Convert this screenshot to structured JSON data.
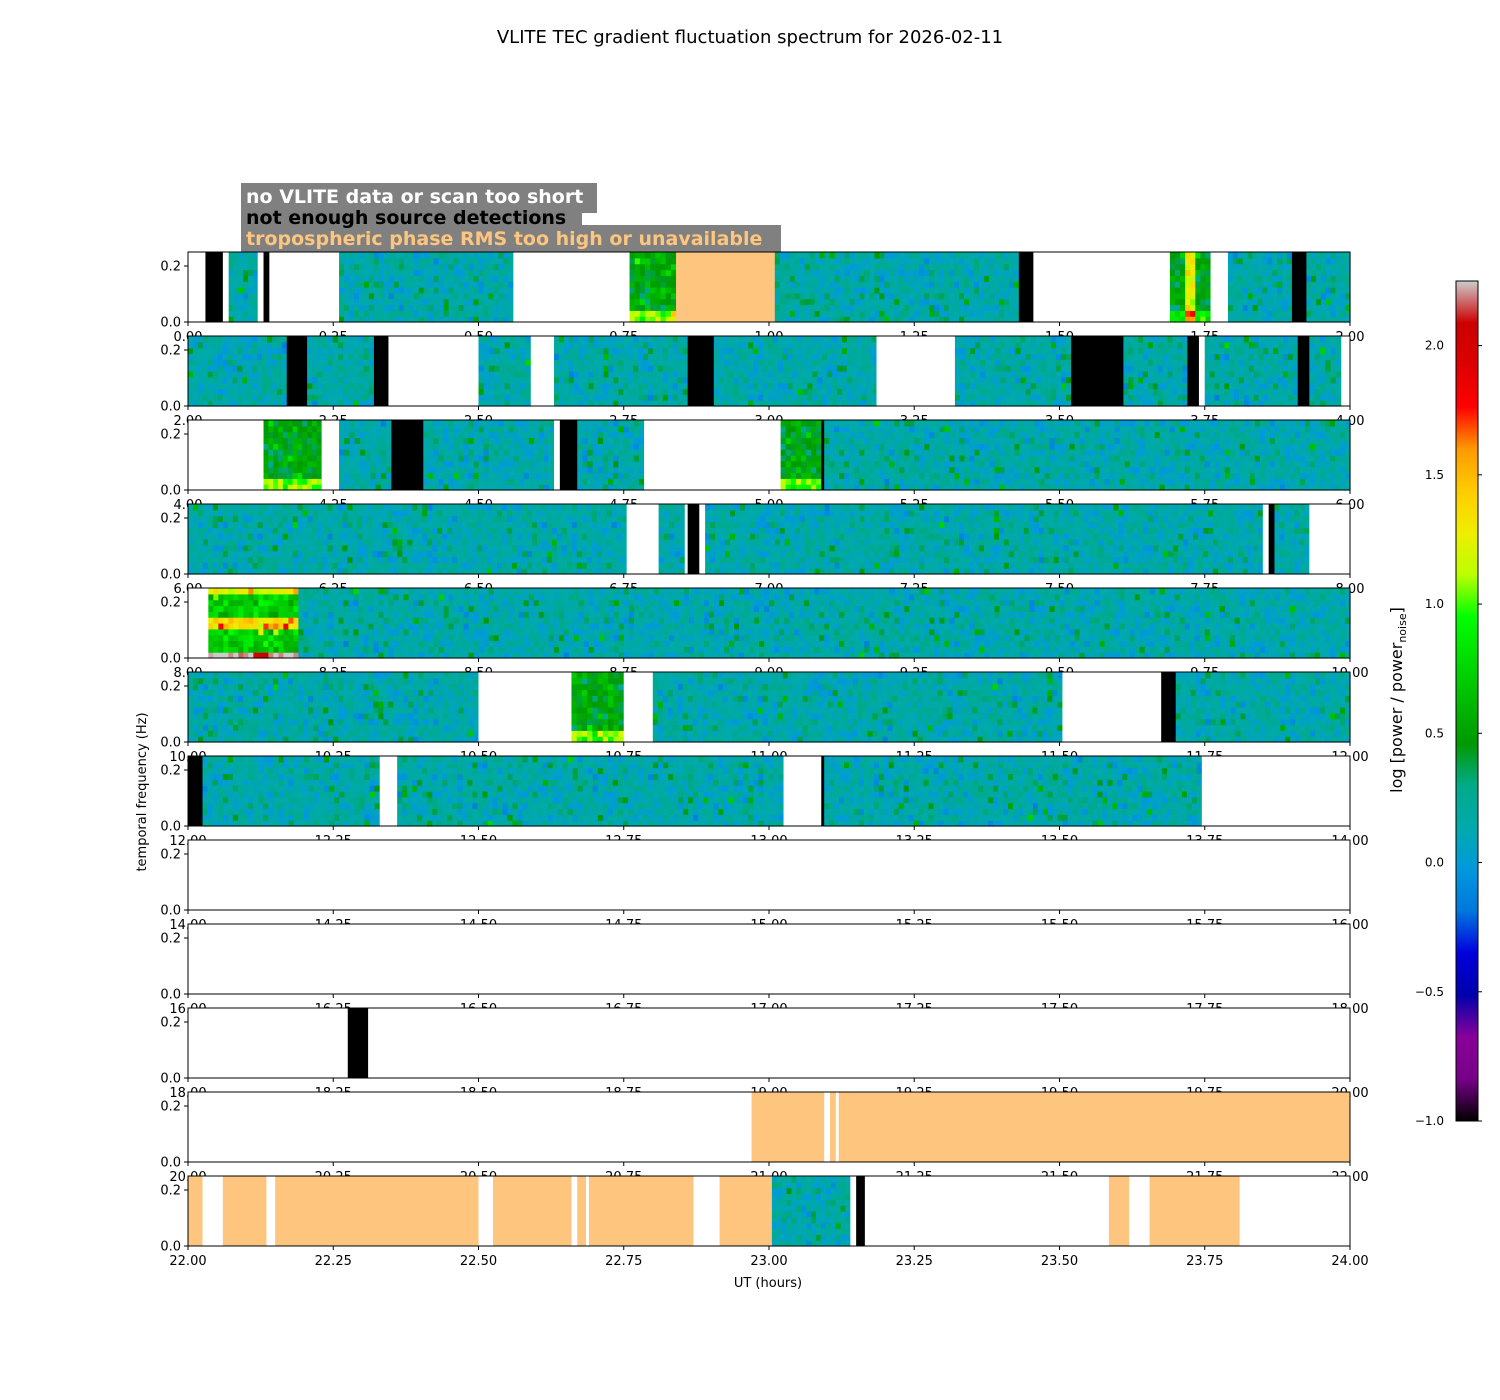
{
  "title": "VLITE TEC gradient fluctuation spectrum for 2026-02-11",
  "legend_box": [
    {
      "text": "no VLITE data or scan too short",
      "color": "#ffffff"
    },
    {
      "text": "not enough source detections",
      "color": "#000000"
    },
    {
      "text": "tropospheric phase RMS too high or unavailable",
      "color": "#fdc57e"
    }
  ],
  "colors": {
    "no_data": "#ffffff",
    "not_enough_detections": "#000000",
    "tropo_too_high": "#fdc57e",
    "legend_background": "#808080"
  },
  "chart_data": {
    "type": "heatmap",
    "xlabel": "UT (hours)",
    "ylabel": "temporal frequency (Hz)",
    "ylim": [
      0,
      0.25
    ],
    "yticks": [
      "0.0",
      "0.2"
    ],
    "colorbar": {
      "label": "log [power / power",
      "label_sub": "noise",
      "label_end": "]",
      "range": [
        -1.0,
        2.25
      ],
      "ticks": [
        "−1.0",
        "−0.5",
        "0.0",
        "0.5",
        "1.0",
        "1.5",
        "2.0"
      ],
      "colormap": "nipy_spectral"
    },
    "panels": [
      {
        "xlim": [
          0,
          2
        ],
        "xticks": [
          "0.00",
          "0.25",
          "0.50",
          "0.75",
          "1.00",
          "1.25",
          "1.50",
          "1.75",
          "2.00"
        ],
        "segments": [
          {
            "s": 0.0,
            "e": 0.03,
            "k": "white"
          },
          {
            "s": 0.03,
            "e": 0.06,
            "k": "black"
          },
          {
            "s": 0.06,
            "e": 0.07,
            "k": "white"
          },
          {
            "s": 0.07,
            "e": 0.12,
            "k": "data"
          },
          {
            "s": 0.12,
            "e": 0.13,
            "k": "white"
          },
          {
            "s": 0.13,
            "e": 0.14,
            "k": "black"
          },
          {
            "s": 0.14,
            "e": 0.26,
            "k": "white"
          },
          {
            "s": 0.26,
            "e": 0.56,
            "k": "data"
          },
          {
            "s": 0.56,
            "e": 0.76,
            "k": "white"
          },
          {
            "s": 0.76,
            "e": 0.84,
            "k": "data",
            "hot": 1
          },
          {
            "s": 0.84,
            "e": 1.01,
            "k": "tropo"
          },
          {
            "s": 1.01,
            "e": 1.43,
            "k": "data"
          },
          {
            "s": 1.43,
            "e": 1.455,
            "k": "black"
          },
          {
            "s": 1.455,
            "e": 1.69,
            "k": "white"
          },
          {
            "s": 1.69,
            "e": 1.76,
            "k": "data",
            "hot": 2
          },
          {
            "s": 1.76,
            "e": 1.79,
            "k": "white"
          },
          {
            "s": 1.79,
            "e": 1.9,
            "k": "data"
          },
          {
            "s": 1.9,
            "e": 1.925,
            "k": "black"
          },
          {
            "s": 1.925,
            "e": 2.0,
            "k": "data"
          }
        ]
      },
      {
        "xlim": [
          2,
          4
        ],
        "xticks": [
          "2.00",
          "2.25",
          "2.50",
          "2.75",
          "3.00",
          "3.25",
          "3.50",
          "3.75",
          "4.00"
        ],
        "segments": [
          {
            "s": 2.0,
            "e": 2.17,
            "k": "data"
          },
          {
            "s": 2.17,
            "e": 2.205,
            "k": "black"
          },
          {
            "s": 2.205,
            "e": 2.32,
            "k": "data"
          },
          {
            "s": 2.32,
            "e": 2.345,
            "k": "black"
          },
          {
            "s": 2.345,
            "e": 2.5,
            "k": "white"
          },
          {
            "s": 2.5,
            "e": 2.59,
            "k": "data"
          },
          {
            "s": 2.59,
            "e": 2.63,
            "k": "white"
          },
          {
            "s": 2.63,
            "e": 2.86,
            "k": "data"
          },
          {
            "s": 2.86,
            "e": 2.905,
            "k": "black"
          },
          {
            "s": 2.905,
            "e": 3.185,
            "k": "data"
          },
          {
            "s": 3.185,
            "e": 3.32,
            "k": "white"
          },
          {
            "s": 3.32,
            "e": 3.52,
            "k": "data"
          },
          {
            "s": 3.52,
            "e": 3.61,
            "k": "black"
          },
          {
            "s": 3.61,
            "e": 3.72,
            "k": "data"
          },
          {
            "s": 3.72,
            "e": 3.74,
            "k": "black"
          },
          {
            "s": 3.74,
            "e": 3.75,
            "k": "white"
          },
          {
            "s": 3.75,
            "e": 3.91,
            "k": "data"
          },
          {
            "s": 3.91,
            "e": 3.93,
            "k": "black"
          },
          {
            "s": 3.93,
            "e": 3.985,
            "k": "data"
          },
          {
            "s": 3.985,
            "e": 4.0,
            "k": "white"
          }
        ]
      },
      {
        "xlim": [
          4,
          6
        ],
        "xticks": [
          "4.00",
          "4.25",
          "4.50",
          "4.75",
          "5.00",
          "5.25",
          "5.50",
          "5.75",
          "6.00"
        ],
        "segments": [
          {
            "s": 4.0,
            "e": 4.13,
            "k": "white"
          },
          {
            "s": 4.13,
            "e": 4.23,
            "k": "data",
            "hot": 1
          },
          {
            "s": 4.23,
            "e": 4.26,
            "k": "white"
          },
          {
            "s": 4.26,
            "e": 4.35,
            "k": "data"
          },
          {
            "s": 4.35,
            "e": 4.405,
            "k": "black"
          },
          {
            "s": 4.405,
            "e": 4.63,
            "k": "data"
          },
          {
            "s": 4.63,
            "e": 4.64,
            "k": "white"
          },
          {
            "s": 4.64,
            "e": 4.67,
            "k": "black"
          },
          {
            "s": 4.67,
            "e": 4.785,
            "k": "data"
          },
          {
            "s": 4.785,
            "e": 5.02,
            "k": "white"
          },
          {
            "s": 5.02,
            "e": 5.09,
            "k": "data",
            "hot": 1
          },
          {
            "s": 5.09,
            "e": 5.095,
            "k": "black"
          },
          {
            "s": 5.095,
            "e": 6.0,
            "k": "data"
          }
        ]
      },
      {
        "xlim": [
          6,
          8
        ],
        "xticks": [
          "6.00",
          "6.25",
          "6.50",
          "6.75",
          "7.00",
          "7.25",
          "7.50",
          "7.75",
          "8.00"
        ],
        "segments": [
          {
            "s": 6.0,
            "e": 6.755,
            "k": "data"
          },
          {
            "s": 6.755,
            "e": 6.81,
            "k": "white"
          },
          {
            "s": 6.81,
            "e": 6.855,
            "k": "data"
          },
          {
            "s": 6.855,
            "e": 6.86,
            "k": "white"
          },
          {
            "s": 6.86,
            "e": 6.88,
            "k": "black"
          },
          {
            "s": 6.88,
            "e": 6.89,
            "k": "white"
          },
          {
            "s": 6.89,
            "e": 7.85,
            "k": "data"
          },
          {
            "s": 7.85,
            "e": 7.86,
            "k": "white"
          },
          {
            "s": 7.86,
            "e": 7.87,
            "k": "black"
          },
          {
            "s": 7.87,
            "e": 7.93,
            "k": "data"
          },
          {
            "s": 7.93,
            "e": 8.0,
            "k": "white"
          }
        ]
      },
      {
        "xlim": [
          8,
          10
        ],
        "xticks": [
          "8.00",
          "8.25",
          "8.50",
          "8.75",
          "9.00",
          "9.25",
          "9.50",
          "9.75",
          "10.00"
        ],
        "segments": [
          {
            "s": 8.0,
            "e": 8.035,
            "k": "white"
          },
          {
            "s": 8.035,
            "e": 8.19,
            "k": "data",
            "hot": 3
          },
          {
            "s": 8.19,
            "e": 10.0,
            "k": "data"
          }
        ]
      },
      {
        "xlim": [
          10,
          12
        ],
        "xticks": [
          "10.00",
          "10.25",
          "10.50",
          "10.75",
          "11.00",
          "11.25",
          "11.50",
          "11.75",
          "12.00"
        ],
        "segments": [
          {
            "s": 10.0,
            "e": 10.5,
            "k": "data"
          },
          {
            "s": 10.5,
            "e": 10.66,
            "k": "white"
          },
          {
            "s": 10.66,
            "e": 10.75,
            "k": "data",
            "hot": 1
          },
          {
            "s": 10.75,
            "e": 10.8,
            "k": "white"
          },
          {
            "s": 10.8,
            "e": 11.505,
            "k": "data"
          },
          {
            "s": 11.505,
            "e": 11.675,
            "k": "white"
          },
          {
            "s": 11.675,
            "e": 11.7,
            "k": "black"
          },
          {
            "s": 11.7,
            "e": 12.0,
            "k": "data"
          }
        ]
      },
      {
        "xlim": [
          12,
          14
        ],
        "xticks": [
          "12.00",
          "12.25",
          "12.50",
          "12.75",
          "13.00",
          "13.25",
          "13.50",
          "13.75",
          "14.00"
        ],
        "segments": [
          {
            "s": 12.0,
            "e": 12.025,
            "k": "black"
          },
          {
            "s": 12.025,
            "e": 12.33,
            "k": "data"
          },
          {
            "s": 12.33,
            "e": 12.36,
            "k": "white"
          },
          {
            "s": 12.36,
            "e": 13.025,
            "k": "data"
          },
          {
            "s": 13.025,
            "e": 13.09,
            "k": "white"
          },
          {
            "s": 13.09,
            "e": 13.095,
            "k": "black"
          },
          {
            "s": 13.095,
            "e": 13.745,
            "k": "data"
          },
          {
            "s": 13.745,
            "e": 14.0,
            "k": "white"
          }
        ]
      },
      {
        "xlim": [
          14,
          16
        ],
        "xticks": [
          "14.00",
          "14.25",
          "14.50",
          "14.75",
          "15.00",
          "15.25",
          "15.50",
          "15.75",
          "16.00"
        ],
        "segments": [
          {
            "s": 14.0,
            "e": 16.0,
            "k": "white"
          }
        ]
      },
      {
        "xlim": [
          16,
          18
        ],
        "xticks": [
          "16.00",
          "16.25",
          "16.50",
          "16.75",
          "17.00",
          "17.25",
          "17.50",
          "17.75",
          "18.00"
        ],
        "segments": [
          {
            "s": 16.0,
            "e": 18.0,
            "k": "white"
          }
        ]
      },
      {
        "xlim": [
          18,
          20
        ],
        "xticks": [
          "18.00",
          "18.25",
          "18.50",
          "18.75",
          "19.00",
          "19.25",
          "19.50",
          "19.75",
          "20.00"
        ],
        "segments": [
          {
            "s": 18.0,
            "e": 18.275,
            "k": "white"
          },
          {
            "s": 18.275,
            "e": 18.31,
            "k": "black"
          },
          {
            "s": 18.31,
            "e": 20.0,
            "k": "white"
          }
        ]
      },
      {
        "xlim": [
          20,
          22
        ],
        "xticks": [
          "20.00",
          "20.25",
          "20.50",
          "20.75",
          "21.00",
          "21.25",
          "21.50",
          "21.75",
          "22.00"
        ],
        "segments": [
          {
            "s": 20.0,
            "e": 20.97,
            "k": "white"
          },
          {
            "s": 20.97,
            "e": 21.095,
            "k": "tropo"
          },
          {
            "s": 21.095,
            "e": 21.105,
            "k": "white"
          },
          {
            "s": 21.105,
            "e": 21.115,
            "k": "tropo"
          },
          {
            "s": 21.115,
            "e": 21.12,
            "k": "white"
          },
          {
            "s": 21.12,
            "e": 22.0,
            "k": "tropo"
          }
        ]
      },
      {
        "xlim": [
          22,
          24
        ],
        "xticks": [
          "22.00",
          "22.25",
          "22.50",
          "22.75",
          "23.00",
          "23.25",
          "23.50",
          "23.75",
          "24.00"
        ],
        "segments": [
          {
            "s": 22.0,
            "e": 22.025,
            "k": "tropo"
          },
          {
            "s": 22.025,
            "e": 22.06,
            "k": "white"
          },
          {
            "s": 22.06,
            "e": 22.135,
            "k": "tropo"
          },
          {
            "s": 22.135,
            "e": 22.15,
            "k": "white"
          },
          {
            "s": 22.15,
            "e": 22.5,
            "k": "tropo"
          },
          {
            "s": 22.5,
            "e": 22.525,
            "k": "white"
          },
          {
            "s": 22.525,
            "e": 22.66,
            "k": "tropo"
          },
          {
            "s": 22.66,
            "e": 22.67,
            "k": "white"
          },
          {
            "s": 22.67,
            "e": 22.685,
            "k": "tropo"
          },
          {
            "s": 22.685,
            "e": 22.69,
            "k": "white"
          },
          {
            "s": 22.69,
            "e": 22.87,
            "k": "tropo"
          },
          {
            "s": 22.87,
            "e": 22.915,
            "k": "white"
          },
          {
            "s": 22.915,
            "e": 23.005,
            "k": "tropo"
          },
          {
            "s": 23.005,
            "e": 23.14,
            "k": "data"
          },
          {
            "s": 23.14,
            "e": 23.15,
            "k": "white"
          },
          {
            "s": 23.15,
            "e": 23.165,
            "k": "black"
          },
          {
            "s": 23.165,
            "e": 23.585,
            "k": "white"
          },
          {
            "s": 23.585,
            "e": 23.62,
            "k": "tropo"
          },
          {
            "s": 23.62,
            "e": 23.655,
            "k": "white"
          },
          {
            "s": 23.655,
            "e": 23.81,
            "k": "tropo"
          },
          {
            "s": 23.81,
            "e": 24.0,
            "k": "white"
          }
        ]
      }
    ]
  }
}
